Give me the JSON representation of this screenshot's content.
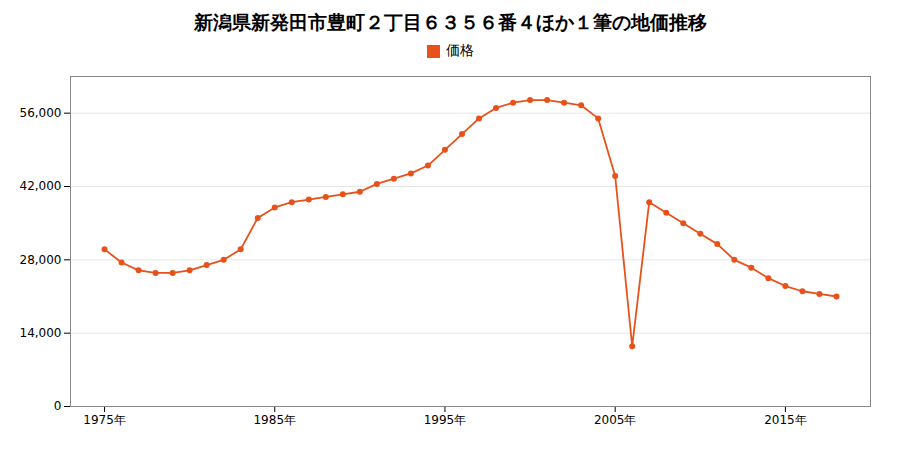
{
  "chart_data": {
    "type": "line",
    "title": "新潟県新発田市豊町２丁目６３５６番４ほか１筆の地価推移",
    "x": [
      1975,
      1976,
      1977,
      1978,
      1979,
      1980,
      1981,
      1982,
      1983,
      1984,
      1985,
      1986,
      1987,
      1988,
      1989,
      1990,
      1991,
      1992,
      1993,
      1994,
      1995,
      1996,
      1997,
      1998,
      1999,
      2000,
      2001,
      2002,
      2003,
      2004,
      2005,
      2006,
      2007,
      2008,
      2009,
      2010,
      2011,
      2012,
      2013,
      2014,
      2015,
      2016,
      2017,
      2018
    ],
    "series": [
      {
        "name": "価格",
        "color": "#E8521A",
        "marker": "circle",
        "values": [
          30000,
          27500,
          26000,
          25500,
          25500,
          26000,
          27000,
          28000,
          30000,
          36000,
          38000,
          39000,
          39500,
          40000,
          40500,
          41000,
          42500,
          43500,
          44500,
          46000,
          49000,
          52000,
          55000,
          57000,
          58000,
          58500,
          58500,
          58000,
          57500,
          55000,
          44000,
          11500,
          39000,
          37000,
          35000,
          33000,
          31000,
          28000,
          26500,
          24500,
          23000,
          22000,
          21500,
          21000
        ]
      }
    ],
    "xlim": [
      1973,
      2020
    ],
    "xticks": [
      {
        "value": 1975,
        "label": "1975年"
      },
      {
        "value": 1985,
        "label": "1985年"
      },
      {
        "value": 1995,
        "label": "1995年"
      },
      {
        "value": 2005,
        "label": "2005年"
      },
      {
        "value": 2015,
        "label": "2015年"
      }
    ],
    "ylim": [
      0,
      63000
    ],
    "yticks": [
      0,
      {
        "value": 14000,
        "label": "14,000"
      },
      {
        "value": 28000,
        "label": "28,000"
      },
      {
        "value": 42000,
        "label": "42,000"
      },
      {
        "value": 56000,
        "label": "56,000"
      }
    ],
    "grid": "y",
    "legend": "top"
  }
}
